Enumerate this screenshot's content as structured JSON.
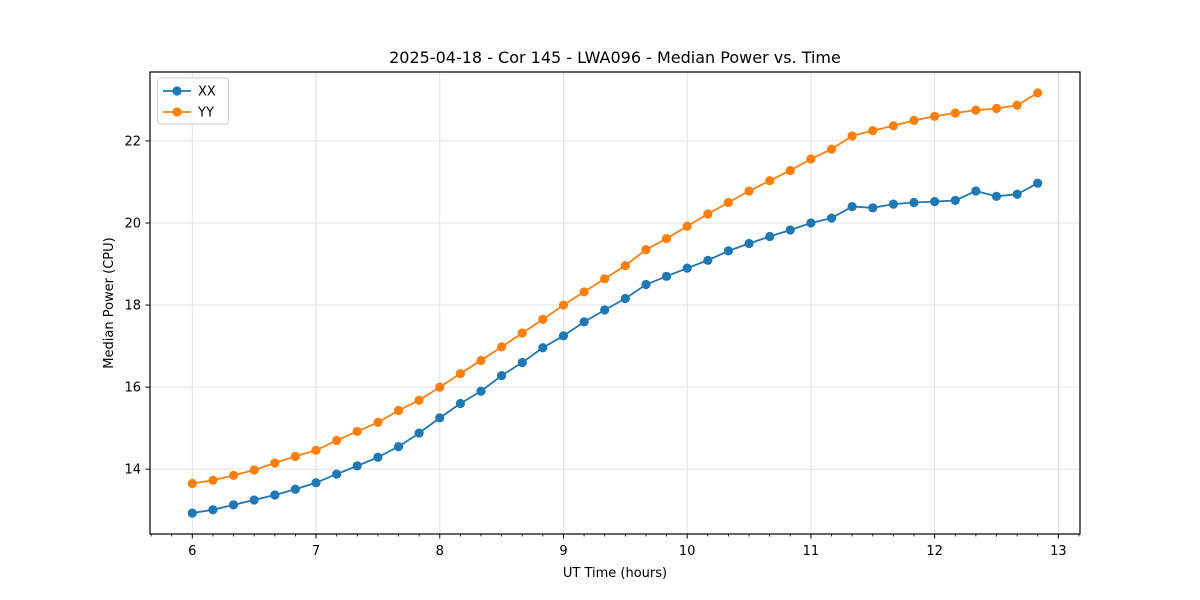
{
  "figure": {
    "background": "#ffffff"
  },
  "chart_data": {
    "type": "line",
    "title": "2025-04-18 - Cor 145 - LWA096 - Median Power vs. Time",
    "xlabel": "UT Time (hours)",
    "ylabel": "Median Power (CPU)",
    "x": [
      6.0,
      6.167,
      6.333,
      6.5,
      6.667,
      6.833,
      7.0,
      7.167,
      7.333,
      7.5,
      7.667,
      7.833,
      8.0,
      8.167,
      8.333,
      8.5,
      8.667,
      8.833,
      9.0,
      9.167,
      9.333,
      9.5,
      9.667,
      9.833,
      10.0,
      10.167,
      10.333,
      10.5,
      10.667,
      10.833,
      11.0,
      11.167,
      11.333,
      11.5,
      11.667,
      11.833,
      12.0,
      12.167,
      12.333,
      12.5,
      12.667,
      12.833
    ],
    "series": [
      {
        "name": "XX",
        "color": "#1f77b4",
        "marker": "circle",
        "values": [
          12.93,
          13.01,
          13.13,
          13.25,
          13.37,
          13.51,
          13.67,
          13.88,
          14.08,
          14.29,
          14.55,
          14.88,
          15.25,
          15.6,
          15.9,
          16.28,
          16.6,
          16.96,
          17.25,
          17.59,
          17.88,
          18.16,
          18.5,
          18.7,
          18.9,
          19.09,
          19.32,
          19.5,
          19.67,
          19.83,
          20.0,
          20.12,
          20.4,
          20.37,
          20.46,
          20.5,
          20.52,
          20.55,
          20.78,
          20.65,
          20.7,
          20.97
        ]
      },
      {
        "name": "YY",
        "color": "#ff7f0e",
        "marker": "circle",
        "values": [
          13.65,
          13.73,
          13.85,
          13.98,
          14.15,
          14.31,
          14.46,
          14.7,
          14.92,
          15.14,
          15.43,
          15.68,
          16.0,
          16.33,
          16.65,
          16.98,
          17.32,
          17.65,
          18.0,
          18.32,
          18.64,
          18.96,
          19.35,
          19.62,
          19.92,
          20.22,
          20.5,
          20.78,
          21.03,
          21.28,
          21.56,
          21.8,
          22.12,
          22.25,
          22.37,
          22.5,
          22.6,
          22.68,
          22.75,
          22.79,
          22.87,
          23.17
        ]
      }
    ],
    "xlim": [
      5.658,
      13.175
    ],
    "ylim": [
      12.42,
      23.68
    ],
    "xticks": [
      6,
      7,
      8,
      9,
      10,
      11,
      12,
      13
    ],
    "yticks": [
      14,
      16,
      18,
      20,
      22
    ],
    "minor_xtick_step": 0.1666667,
    "grid": true,
    "grid_color": "#e0e0e0",
    "axis_color": "#000000",
    "legend_position": "upper-left",
    "legend_labels": [
      "XX",
      "YY"
    ]
  }
}
